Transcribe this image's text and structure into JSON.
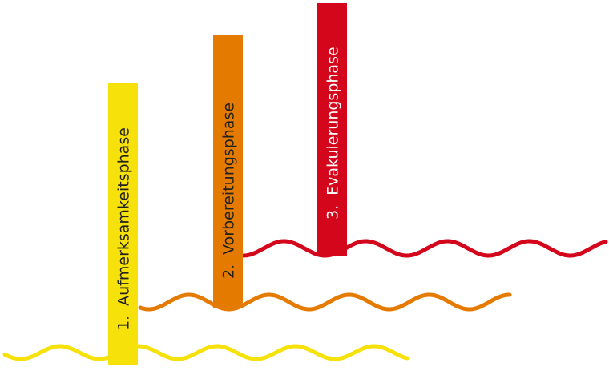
{
  "phases": [
    {
      "number": "1.",
      "name": "Aufmerksamkeitsphase",
      "color": "#F7E10A",
      "text_color": "#222222"
    },
    {
      "number": "2.",
      "name": "Vorbereitungsphase",
      "color": "#E57A00",
      "text_color": "#222222"
    },
    {
      "number": "3.",
      "name": "Evakuierungsphase",
      "color": "#D3061B",
      "text_color": "#ffffff"
    }
  ]
}
